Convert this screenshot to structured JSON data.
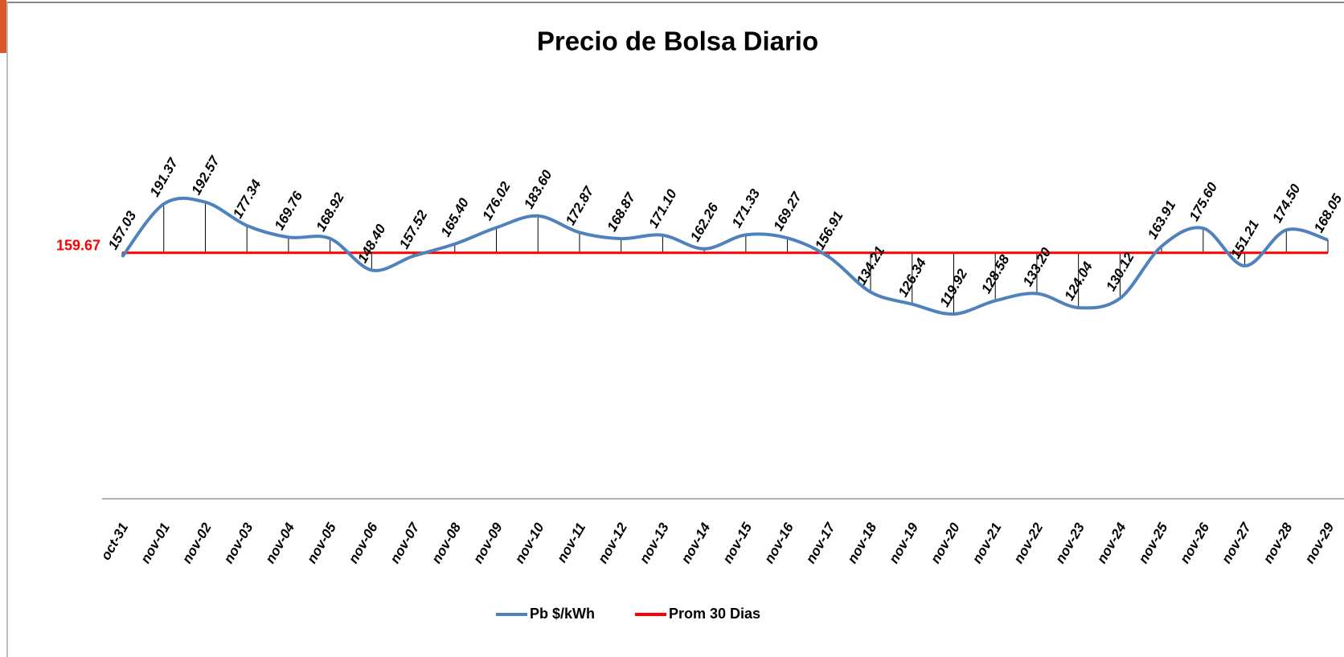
{
  "chart_data": {
    "type": "line",
    "title": "Precio de Bolsa Diario",
    "categories": [
      "oct-31",
      "nov-01",
      "nov-02",
      "nov-03",
      "nov-04",
      "nov-05",
      "nov-06",
      "nov-07",
      "nov-08",
      "nov-09",
      "nov-10",
      "nov-11",
      "nov-12",
      "nov-13",
      "nov-14",
      "nov-15",
      "nov-16",
      "nov-17",
      "nov-18",
      "nov-19",
      "nov-20",
      "nov-21",
      "nov-22",
      "nov-23",
      "nov-24",
      "nov-25",
      "nov-26",
      "nov-27",
      "nov-28",
      "nov-29"
    ],
    "series": [
      {
        "name": "Pb $/kWh",
        "color": "#4f81bd",
        "values": [
          157.03,
          191.37,
          192.57,
          177.34,
          169.76,
          168.92,
          148.4,
          157.52,
          165.4,
          176.02,
          183.6,
          172.87,
          168.87,
          171.1,
          162.26,
          171.33,
          169.27,
          156.91,
          134.21,
          126.34,
          119.92,
          128.58,
          133.2,
          124.04,
          130.12,
          163.91,
          175.6,
          151.21,
          174.5,
          168.05
        ],
        "value_labels": [
          "157.03",
          "191.37",
          "192.57",
          "177.34",
          "169.76",
          "168.92",
          "148.40",
          "157.52",
          "165.40",
          "176.02",
          "183.60",
          "172.87",
          "168.87",
          "171.10",
          "162.26",
          "171.33",
          "169.27",
          "156.91",
          "134.21",
          "126.34",
          "119.92",
          "128.58",
          "133.20",
          "124.04",
          "130.12",
          "163.91",
          "175.60",
          "151.21",
          "174.50",
          "168.05"
        ]
      }
    ],
    "average": {
      "name": "Prom 30 Dias",
      "color": "#ff0000",
      "value": 159.67
    },
    "ylim": [
      0,
      250
    ]
  }
}
